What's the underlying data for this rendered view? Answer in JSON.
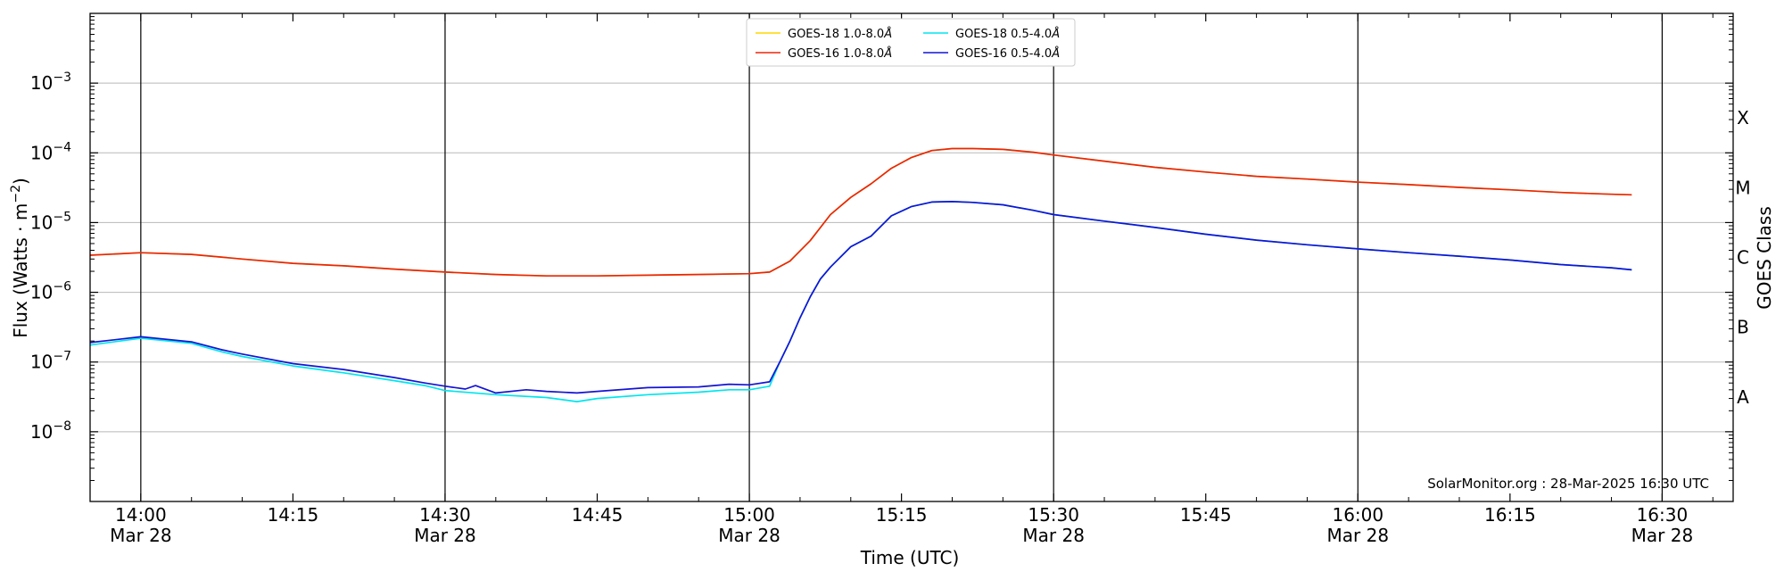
{
  "chart_data": {
    "type": "line",
    "xlabel": "Time (UTC)",
    "ylabel_main": "Flux (Watts · m",
    "ylabel_sup": "−2",
    "ylabel_close": ")",
    "right_label": "GOES Class",
    "annotation": "SolarMonitor.org : 28-Mar-2025 16:30 UTC",
    "scale": "log",
    "ylim": [
      1e-09,
      0.01
    ],
    "xlim": [
      "13:55",
      "16:37"
    ],
    "grid": "horizontal at decades, vertical at half-hours",
    "legend_position": "top-center",
    "x_ticks": [
      {
        "time": "14:00",
        "top": "14:00",
        "bottom": "Mar 28"
      },
      {
        "time": "14:15",
        "top": "14:15",
        "bottom": ""
      },
      {
        "time": "14:30",
        "top": "14:30",
        "bottom": "Mar 28"
      },
      {
        "time": "14:45",
        "top": "14:45",
        "bottom": ""
      },
      {
        "time": "15:00",
        "top": "15:00",
        "bottom": "Mar 28"
      },
      {
        "time": "15:15",
        "top": "15:15",
        "bottom": ""
      },
      {
        "time": "15:30",
        "top": "15:30",
        "bottom": "Mar 28"
      },
      {
        "time": "15:45",
        "top": "15:45",
        "bottom": ""
      },
      {
        "time": "16:00",
        "top": "16:00",
        "bottom": "Mar 28"
      },
      {
        "time": "16:15",
        "top": "16:15",
        "bottom": ""
      },
      {
        "time": "16:30",
        "top": "16:30",
        "bottom": "Mar 28"
      }
    ],
    "vlines": [
      "14:00",
      "14:30",
      "15:00",
      "15:30",
      "16:00",
      "16:30"
    ],
    "y_ticks": [
      {
        "value": 1e-08,
        "base": "10",
        "exp": "−8"
      },
      {
        "value": 1e-07,
        "base": "10",
        "exp": "−7"
      },
      {
        "value": 1e-06,
        "base": "10",
        "exp": "−6"
      },
      {
        "value": 1e-05,
        "base": "10",
        "exp": "−5"
      },
      {
        "value": 0.0001,
        "base": "10",
        "exp": "−4"
      },
      {
        "value": 0.001,
        "base": "10",
        "exp": "−3"
      }
    ],
    "classes": [
      {
        "label": "A",
        "center": 3.16e-08
      },
      {
        "label": "B",
        "center": 3.16e-07
      },
      {
        "label": "C",
        "center": 3.16e-06
      },
      {
        "label": "M",
        "center": 3.16e-05
      },
      {
        "label": "X",
        "center": 0.000316
      }
    ],
    "series": [
      {
        "name": "GOES-18 1.0-8.0",
        "unit": "Å",
        "color": "#ffd700",
        "points": [
          [
            "13:55",
            3.4e-06
          ],
          [
            "14:00",
            3.7e-06
          ],
          [
            "14:05",
            3.5e-06
          ],
          [
            "14:10",
            3e-06
          ],
          [
            "14:15",
            2.6e-06
          ],
          [
            "14:20",
            2.4e-06
          ],
          [
            "14:25",
            2.15e-06
          ],
          [
            "14:30",
            1.95e-06
          ],
          [
            "14:35",
            1.8e-06
          ],
          [
            "14:40",
            1.72e-06
          ],
          [
            "14:45",
            1.72e-06
          ],
          [
            "14:50",
            1.76e-06
          ],
          [
            "14:55",
            1.8e-06
          ],
          [
            "15:00",
            1.85e-06
          ],
          [
            "15:02",
            1.95e-06
          ],
          [
            "15:04",
            2.8e-06
          ],
          [
            "15:06",
            5.5e-06
          ],
          [
            "15:08",
            1.3e-05
          ],
          [
            "15:10",
            2.3e-05
          ],
          [
            "15:12",
            3.6e-05
          ],
          [
            "15:14",
            6e-05
          ],
          [
            "15:16",
            8.6e-05
          ],
          [
            "15:18",
            0.000108
          ],
          [
            "15:20",
            0.000115
          ],
          [
            "15:22",
            0.000115
          ],
          [
            "15:25",
            0.000112
          ],
          [
            "15:28",
            0.000102
          ],
          [
            "15:30",
            9.3e-05
          ],
          [
            "15:35",
            7.6e-05
          ],
          [
            "15:40",
            6.2e-05
          ],
          [
            "15:45",
            5.3e-05
          ],
          [
            "15:50",
            4.6e-05
          ],
          [
            "15:55",
            4.2e-05
          ],
          [
            "16:00",
            3.8e-05
          ],
          [
            "16:05",
            3.5e-05
          ],
          [
            "16:10",
            3.2e-05
          ],
          [
            "16:15",
            2.95e-05
          ],
          [
            "16:20",
            2.7e-05
          ],
          [
            "16:25",
            2.55e-05
          ],
          [
            "16:27",
            2.5e-05
          ]
        ]
      },
      {
        "name": "GOES-16 1.0-8.0",
        "unit": "Å",
        "color": "#e8260c",
        "points": [
          [
            "13:55",
            3.4e-06
          ],
          [
            "14:00",
            3.7e-06
          ],
          [
            "14:05",
            3.5e-06
          ],
          [
            "14:10",
            3e-06
          ],
          [
            "14:15",
            2.6e-06
          ],
          [
            "14:20",
            2.4e-06
          ],
          [
            "14:25",
            2.15e-06
          ],
          [
            "14:30",
            1.95e-06
          ],
          [
            "14:35",
            1.8e-06
          ],
          [
            "14:40",
            1.72e-06
          ],
          [
            "14:45",
            1.72e-06
          ],
          [
            "14:50",
            1.76e-06
          ],
          [
            "14:55",
            1.8e-06
          ],
          [
            "15:00",
            1.85e-06
          ],
          [
            "15:02",
            1.95e-06
          ],
          [
            "15:04",
            2.8e-06
          ],
          [
            "15:06",
            5.5e-06
          ],
          [
            "15:08",
            1.3e-05
          ],
          [
            "15:10",
            2.3e-05
          ],
          [
            "15:12",
            3.6e-05
          ],
          [
            "15:14",
            6e-05
          ],
          [
            "15:16",
            8.6e-05
          ],
          [
            "15:18",
            0.000108
          ],
          [
            "15:20",
            0.000115
          ],
          [
            "15:22",
            0.000115
          ],
          [
            "15:25",
            0.000112
          ],
          [
            "15:28",
            0.000102
          ],
          [
            "15:30",
            9.3e-05
          ],
          [
            "15:35",
            7.6e-05
          ],
          [
            "15:40",
            6.2e-05
          ],
          [
            "15:45",
            5.3e-05
          ],
          [
            "15:50",
            4.6e-05
          ],
          [
            "15:55",
            4.2e-05
          ],
          [
            "16:00",
            3.8e-05
          ],
          [
            "16:05",
            3.5e-05
          ],
          [
            "16:10",
            3.2e-05
          ],
          [
            "16:15",
            2.95e-05
          ],
          [
            "16:20",
            2.7e-05
          ],
          [
            "16:25",
            2.55e-05
          ],
          [
            "16:27",
            2.5e-05
          ]
        ]
      },
      {
        "name": "GOES-18 0.5-4.0",
        "unit": "Å",
        "color": "#00e5ee",
        "points": [
          [
            "13:55",
            1.75e-07
          ],
          [
            "14:00",
            2.2e-07
          ],
          [
            "14:05",
            1.85e-07
          ],
          [
            "14:08",
            1.4e-07
          ],
          [
            "14:10",
            1.2e-07
          ],
          [
            "14:15",
            8.8e-08
          ],
          [
            "14:20",
            7e-08
          ],
          [
            "14:25",
            5.4e-08
          ],
          [
            "14:28",
            4.6e-08
          ],
          [
            "14:30",
            3.9e-08
          ],
          [
            "14:35",
            3.4e-08
          ],
          [
            "14:40",
            3.1e-08
          ],
          [
            "14:43",
            2.7e-08
          ],
          [
            "14:45",
            3e-08
          ],
          [
            "14:50",
            3.4e-08
          ],
          [
            "14:55",
            3.7e-08
          ],
          [
            "14:58",
            4e-08
          ],
          [
            "15:00",
            4e-08
          ],
          [
            "15:02",
            4.5e-08
          ],
          [
            "15:03",
            1e-07
          ],
          [
            "15:04",
            2e-07
          ],
          [
            "15:05",
            4.3e-07
          ],
          [
            "15:06",
            8.6e-07
          ],
          [
            "15:07",
            1.55e-06
          ],
          [
            "15:08",
            2.3e-06
          ],
          [
            "15:10",
            4.5e-06
          ],
          [
            "15:12",
            6.4e-06
          ],
          [
            "15:14",
            1.25e-05
          ],
          [
            "15:16",
            1.7e-05
          ],
          [
            "15:18",
            1.97e-05
          ],
          [
            "15:20",
            2e-05
          ],
          [
            "15:22",
            1.95e-05
          ],
          [
            "15:25",
            1.8e-05
          ],
          [
            "15:28",
            1.5e-05
          ],
          [
            "15:30",
            1.3e-05
          ],
          [
            "15:35",
            1.05e-05
          ],
          [
            "15:40",
            8.5e-06
          ],
          [
            "15:45",
            6.8e-06
          ],
          [
            "15:50",
            5.6e-06
          ],
          [
            "15:55",
            4.8e-06
          ],
          [
            "16:00",
            4.2e-06
          ],
          [
            "16:05",
            3.7e-06
          ],
          [
            "16:10",
            3.3e-06
          ],
          [
            "16:15",
            2.9e-06
          ],
          [
            "16:20",
            2.5e-06
          ],
          [
            "16:25",
            2.25e-06
          ],
          [
            "16:27",
            2.1e-06
          ]
        ]
      },
      {
        "name": "GOES-16 0.5-4.0",
        "unit": "Å",
        "color": "#1414d4",
        "points": [
          [
            "13:55",
            1.9e-07
          ],
          [
            "14:00",
            2.3e-07
          ],
          [
            "14:05",
            1.95e-07
          ],
          [
            "14:08",
            1.5e-07
          ],
          [
            "14:10",
            1.3e-07
          ],
          [
            "14:15",
            9.5e-08
          ],
          [
            "14:20",
            7.8e-08
          ],
          [
            "14:25",
            6e-08
          ],
          [
            "14:28",
            5e-08
          ],
          [
            "14:30",
            4.5e-08
          ],
          [
            "14:32",
            4.1e-08
          ],
          [
            "14:33",
            4.6e-08
          ],
          [
            "14:35",
            3.6e-08
          ],
          [
            "14:38",
            4e-08
          ],
          [
            "14:40",
            3.8e-08
          ],
          [
            "14:43",
            3.6e-08
          ],
          [
            "14:45",
            3.8e-08
          ],
          [
            "14:50",
            4.3e-08
          ],
          [
            "14:55",
            4.4e-08
          ],
          [
            "14:58",
            4.8e-08
          ],
          [
            "15:00",
            4.7e-08
          ],
          [
            "15:02",
            5.2e-08
          ],
          [
            "15:03",
            1e-07
          ],
          [
            "15:04",
            2e-07
          ],
          [
            "15:05",
            4.3e-07
          ],
          [
            "15:06",
            8.6e-07
          ],
          [
            "15:07",
            1.55e-06
          ],
          [
            "15:08",
            2.3e-06
          ],
          [
            "15:10",
            4.5e-06
          ],
          [
            "15:12",
            6.4e-06
          ],
          [
            "15:14",
            1.25e-05
          ],
          [
            "15:16",
            1.7e-05
          ],
          [
            "15:18",
            1.97e-05
          ],
          [
            "15:20",
            2e-05
          ],
          [
            "15:22",
            1.95e-05
          ],
          [
            "15:25",
            1.8e-05
          ],
          [
            "15:28",
            1.5e-05
          ],
          [
            "15:30",
            1.3e-05
          ],
          [
            "15:35",
            1.05e-05
          ],
          [
            "15:40",
            8.5e-06
          ],
          [
            "15:45",
            6.8e-06
          ],
          [
            "15:50",
            5.6e-06
          ],
          [
            "15:55",
            4.8e-06
          ],
          [
            "16:00",
            4.2e-06
          ],
          [
            "16:05",
            3.7e-06
          ],
          [
            "16:10",
            3.3e-06
          ],
          [
            "16:15",
            2.9e-06
          ],
          [
            "16:20",
            2.5e-06
          ],
          [
            "16:25",
            2.25e-06
          ],
          [
            "16:27",
            2.1e-06
          ]
        ]
      }
    ]
  }
}
